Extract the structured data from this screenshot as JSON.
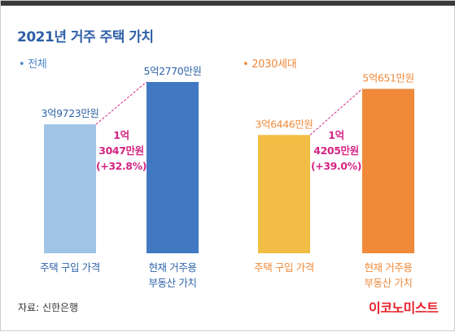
{
  "title": "2021년 거주 주택 가치",
  "source": "자료: 신한은행",
  "brand": "이코노미스트",
  "colors": {
    "title": "#2f5fa7",
    "all_label": "#4a86c8",
    "all_purchase": "#a0c4e6",
    "all_current": "#4178c2",
    "gen_label": "#f0883a",
    "gen_purchase": "#f2bd44",
    "gen_current": "#f08a3a",
    "diff": "#d42583",
    "bar_label_all": "#2e63a8",
    "bar_label_gen": "#f08a3a",
    "brand": "#e8212b"
  },
  "sections": [
    {
      "label": "• 전체"
    },
    {
      "label": "• 2030세대"
    }
  ],
  "chart_data": [
    {
      "type": "bar",
      "section": "• 전체",
      "categories": [
        "주택 구입 가격",
        "현재 거주용\n부동산 가치"
      ],
      "values": [
        39723,
        52770
      ],
      "value_labels": [
        "3억9723만원",
        "5억2770만원"
      ],
      "unit": "만원",
      "difference": {
        "lines": [
          "1억",
          "3047만원",
          "(+32.8%)"
        ],
        "value": 13047,
        "percent": 32.8
      },
      "ylim": [
        0,
        60000
      ]
    },
    {
      "type": "bar",
      "section": "• 2030세대",
      "categories": [
        "주택 구입 가격",
        "현재 거주용\n부동산 가치"
      ],
      "values": [
        36446,
        50651
      ],
      "value_labels": [
        "3억6446만원",
        "5억651만원"
      ],
      "unit": "만원",
      "difference": {
        "lines": [
          "1억",
          "4205만원",
          "(+39.0%)"
        ],
        "value": 14205,
        "percent": 39.0
      },
      "ylim": [
        0,
        60000
      ]
    }
  ]
}
